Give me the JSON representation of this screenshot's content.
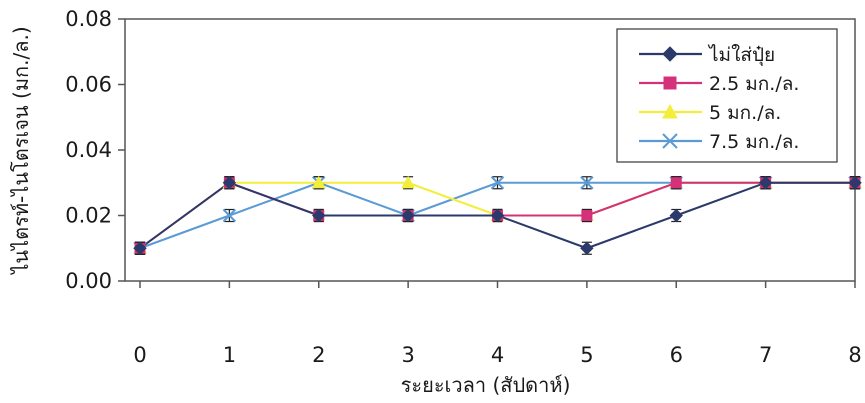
{
  "chart_data": {
    "type": "line",
    "title": "",
    "xlabel": "ระยะเวลา (สัปดาห์)",
    "ylabel": "ไนไตรท์-ไนโตรเจน (มก./ล.)",
    "x": [
      0,
      1,
      2,
      3,
      4,
      5,
      6,
      7,
      8
    ],
    "xlim": [
      0,
      8
    ],
    "ylim": [
      0,
      0.08
    ],
    "yticks": [
      "0.00",
      "0.02",
      "0.04",
      "0.06",
      "0.08"
    ],
    "xticks": [
      "0",
      "1",
      "2",
      "3",
      "4",
      "5",
      "6",
      "7",
      "8"
    ],
    "grid": false,
    "legend_position": "top-right",
    "error_bars": true,
    "series": [
      {
        "name": "ไม่ใส่ปุ๋ย",
        "marker": "diamond",
        "color": "#2b3a6b",
        "values": [
          0.01,
          0.03,
          0.02,
          0.02,
          0.02,
          0.01,
          0.02,
          0.03,
          0.03
        ]
      },
      {
        "name": "2.5 มก./ล.",
        "marker": "square",
        "color": "#d4317a",
        "values": [
          0.01,
          0.03,
          0.02,
          0.02,
          0.02,
          0.02,
          0.03,
          0.03,
          0.03
        ]
      },
      {
        "name": "5 มก./ล.",
        "marker": "triangle",
        "color": "#f2ee3a",
        "values": [
          0.01,
          0.03,
          0.03,
          0.03,
          0.02,
          0.02,
          0.03,
          0.03,
          0.03
        ]
      },
      {
        "name": "7.5 มก./ล.",
        "marker": "x",
        "color": "#5b9bd5",
        "values": [
          0.01,
          0.02,
          0.03,
          0.02,
          0.03,
          0.03,
          0.03,
          0.03,
          0.03
        ]
      }
    ]
  }
}
